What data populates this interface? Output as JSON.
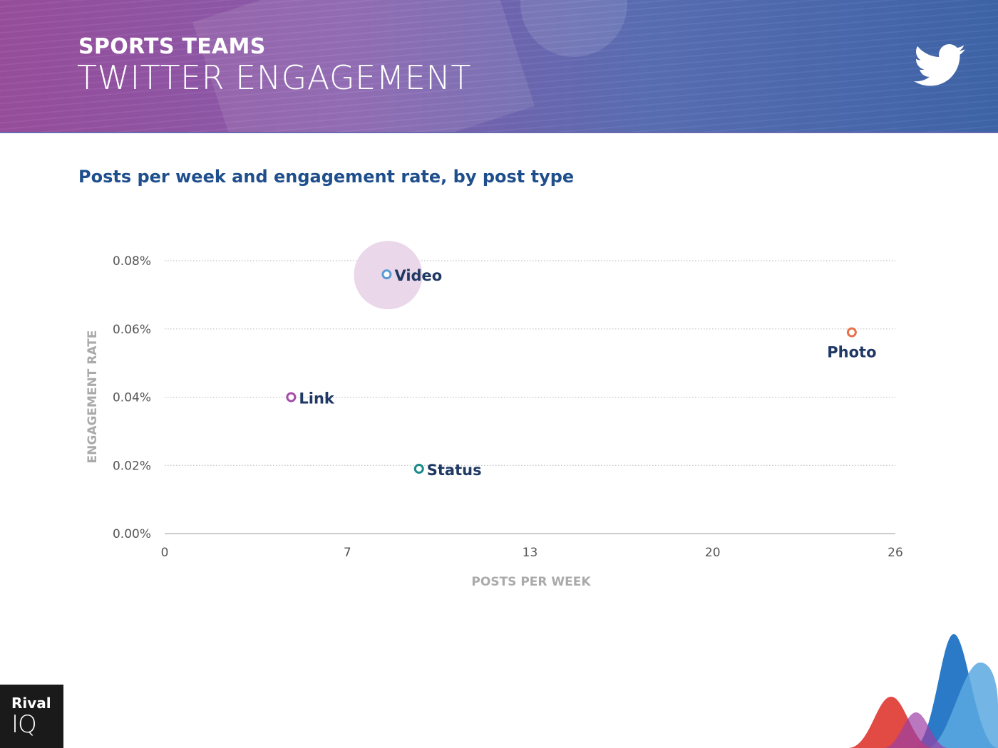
{
  "header": {
    "kicker": "SPORTS TEAMS",
    "title": "TWITTER ENGAGEMENT",
    "icon": "twitter-bird-icon"
  },
  "subtitle": "Posts per week and engagement rate, by post type",
  "brand": {
    "line1": "Rival",
    "line2": "IQ"
  },
  "colors": {
    "header_start": "#9a4f9e",
    "header_end": "#3f66aa",
    "subtitle": "#1e4f8c",
    "label": "#1f3864",
    "axis_title": "#aaaaaa",
    "tick": "#555555"
  },
  "chart_data": {
    "type": "scatter",
    "title": "Posts per week and engagement rate, by post type",
    "xlabel": "POSTS PER WEEK",
    "ylabel": "ENGAGEMENT RATE",
    "xlim": [
      0,
      26
    ],
    "ylim": [
      0,
      0.08
    ],
    "x_ticks": [
      {
        "value": 0,
        "label": "0"
      },
      {
        "value": 6.5,
        "label": "7"
      },
      {
        "value": 13,
        "label": "13"
      },
      {
        "value": 19.5,
        "label": "20"
      },
      {
        "value": 26,
        "label": "26"
      }
    ],
    "y_ticks": [
      {
        "value": 0,
        "label": "0.00%"
      },
      {
        "value": 0.02,
        "label": "0.02%"
      },
      {
        "value": 0.04,
        "label": "0.04%"
      },
      {
        "value": 0.06,
        "label": "0.06%"
      },
      {
        "value": 0.08,
        "label": "0.08%"
      }
    ],
    "grid": "horizontal dotted",
    "points": [
      {
        "label": "Video",
        "x": 7.9,
        "y": 0.076,
        "color": "#5b9bd5",
        "highlight": true
      },
      {
        "label": "Photo",
        "x": 24.45,
        "y": 0.059,
        "color": "#e8704a",
        "label_position": "below"
      },
      {
        "label": "Link",
        "x": 4.5,
        "y": 0.04,
        "color": "#a64ca6"
      },
      {
        "label": "Status",
        "x": 9.05,
        "y": 0.019,
        "color": "#1a8a8a"
      }
    ]
  }
}
